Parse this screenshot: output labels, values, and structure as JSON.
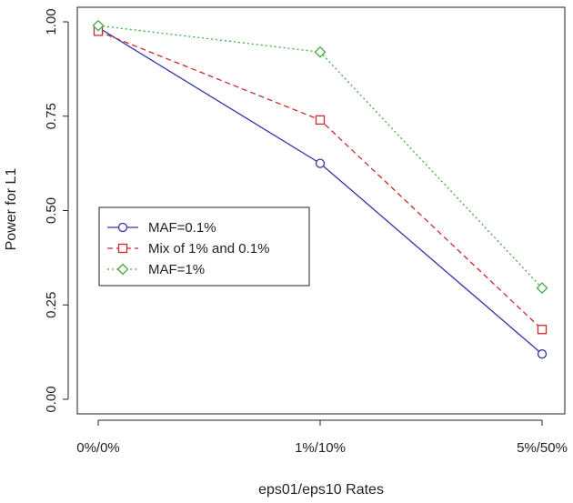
{
  "chart_data": {
    "type": "line",
    "title": "",
    "xlabel": "eps01/eps10 Rates",
    "ylabel": "Power for L1",
    "categories": [
      "0%/0%",
      "1%/10%",
      "5%/50%"
    ],
    "ylim": [
      0,
      1
    ],
    "yticks": [
      0.0,
      0.25,
      0.5,
      0.75,
      1.0
    ],
    "ytick_labels": [
      "0.00",
      "0.25",
      "0.50",
      "0.75",
      "1.00"
    ],
    "grid": false,
    "legend_position": "left",
    "series": [
      {
        "name": "MAF=0.1%",
        "values": [
          0.985,
          0.625,
          0.12
        ],
        "color": "#3333aa",
        "line_style": "solid",
        "marker": "circle"
      },
      {
        "name": "Mix of 1% and 0.1%",
        "values": [
          0.975,
          0.74,
          0.185
        ],
        "color": "#cc2a2a",
        "line_style": "dashed",
        "marker": "square"
      },
      {
        "name": "MAF=1%",
        "values": [
          0.99,
          0.92,
          0.295
        ],
        "color": "#44aa44",
        "line_style": "dotted",
        "marker": "diamond"
      }
    ]
  }
}
